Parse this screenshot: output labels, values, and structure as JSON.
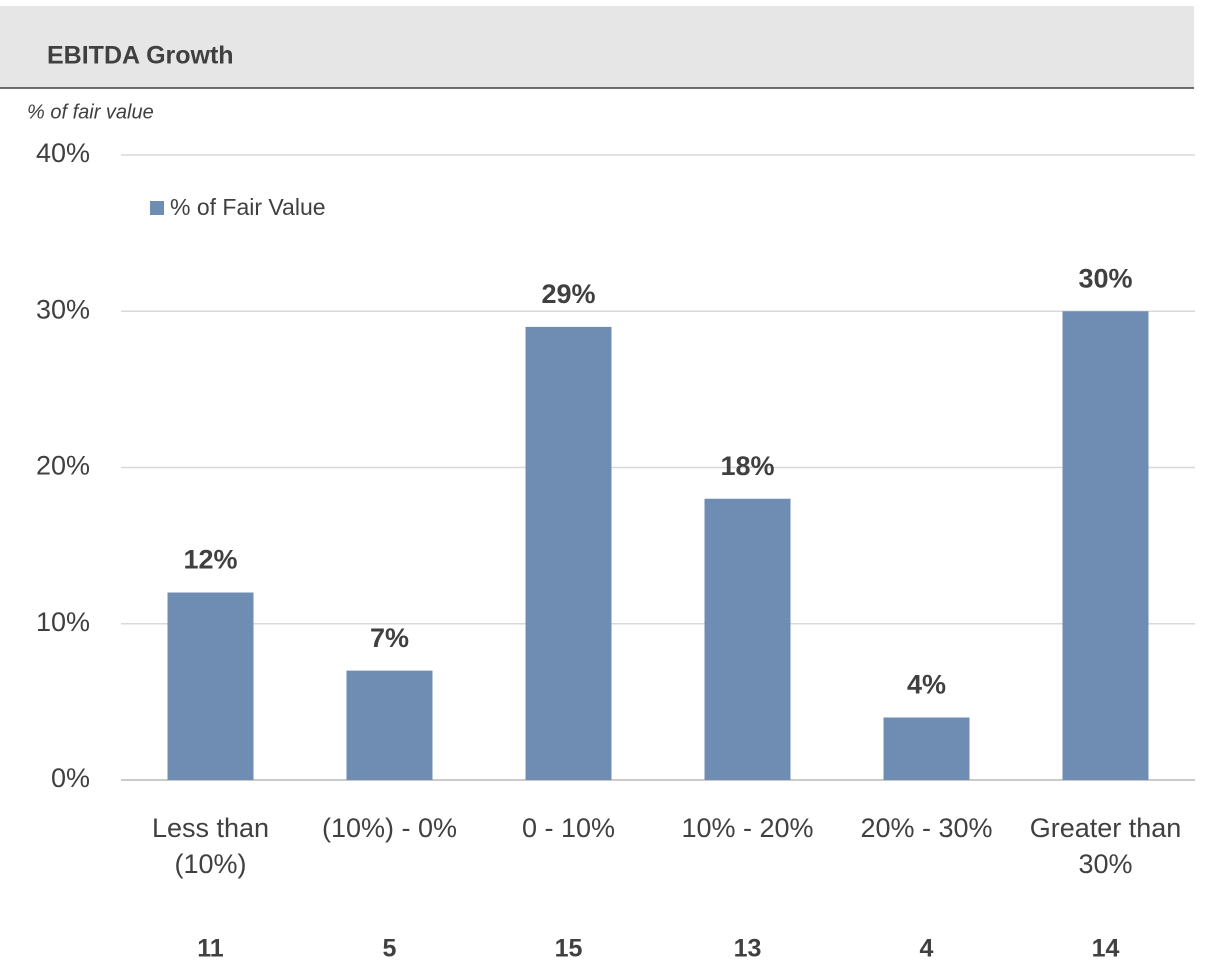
{
  "chart_data": {
    "type": "bar",
    "title": "EBITDA Growth",
    "subtitle": "% of fair value",
    "categories": [
      "Less than (10%)",
      "(10%) - 0%",
      "0 - 10%",
      "10% - 20%",
      "20% - 30%",
      "Greater than 30%"
    ],
    "series": [
      {
        "name": "% of Fair Value",
        "color": "#6f8db3",
        "values": [
          12,
          7,
          29,
          18,
          4,
          30
        ],
        "value_labels": [
          "12%",
          "7%",
          "29%",
          "18%",
          "4%",
          "30%"
        ]
      }
    ],
    "counts": [
      11,
      5,
      15,
      13,
      4,
      14
    ],
    "ylim": [
      0,
      40
    ],
    "yticks": [
      {
        "value": 0,
        "label": "0%"
      },
      {
        "value": 10,
        "label": "10%"
      },
      {
        "value": 20,
        "label": "20%"
      },
      {
        "value": 30,
        "label": "30%"
      },
      {
        "value": 40,
        "label": "40%"
      }
    ],
    "grid": true,
    "legend": "top-left"
  }
}
